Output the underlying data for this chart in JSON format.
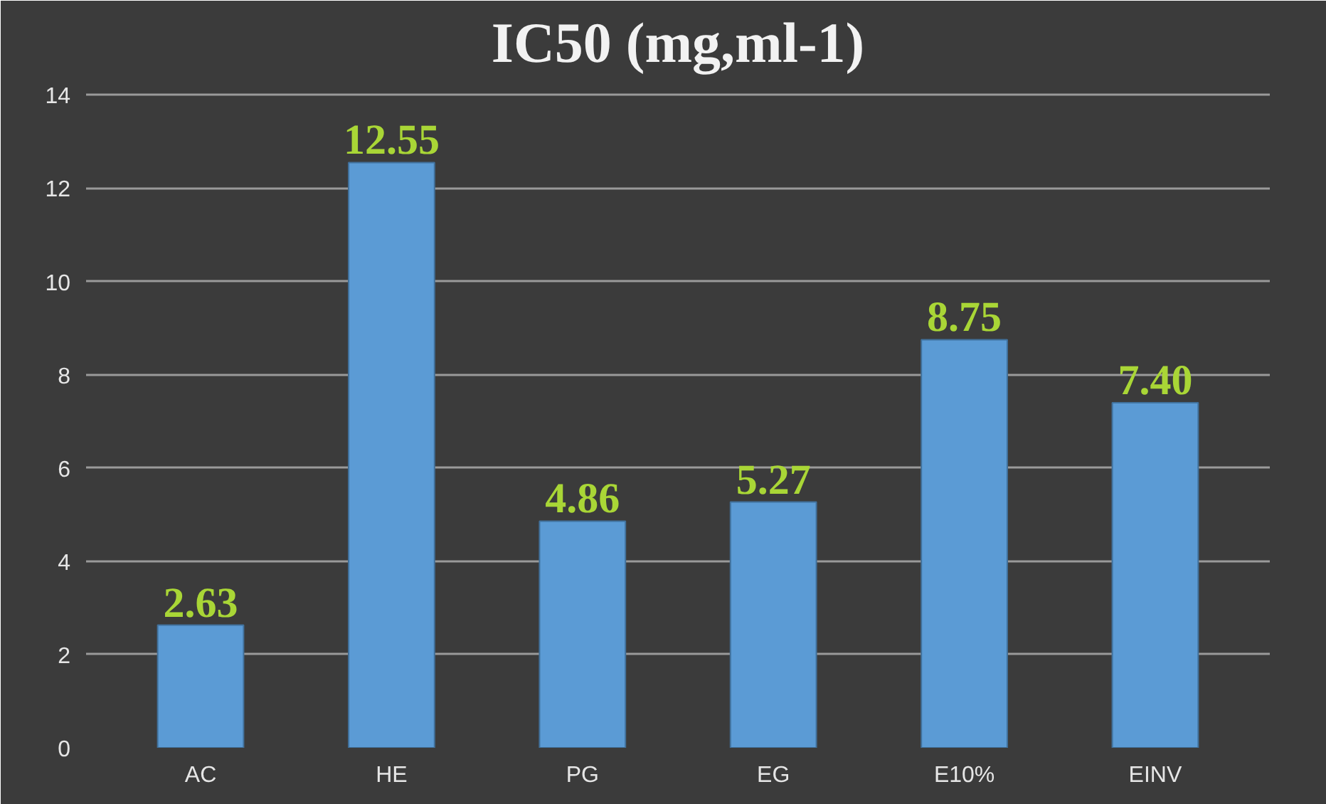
{
  "chart_data": {
    "type": "bar",
    "title": "IC50 (mg,ml-1)",
    "categories": [
      "AC",
      "HE",
      "PG",
      "EG",
      "E10%",
      "EINV"
    ],
    "values": [
      2.63,
      12.55,
      4.86,
      5.27,
      8.75,
      7.4
    ],
    "value_labels": [
      "2.63",
      "12.55",
      "4.86",
      "5.27",
      "8.75",
      "7.40"
    ],
    "color": "#5b9bd5",
    "ylim": [
      0,
      14
    ],
    "yticks": [
      0,
      2,
      4,
      6,
      8,
      10,
      12,
      14
    ],
    "grid": "y"
  }
}
